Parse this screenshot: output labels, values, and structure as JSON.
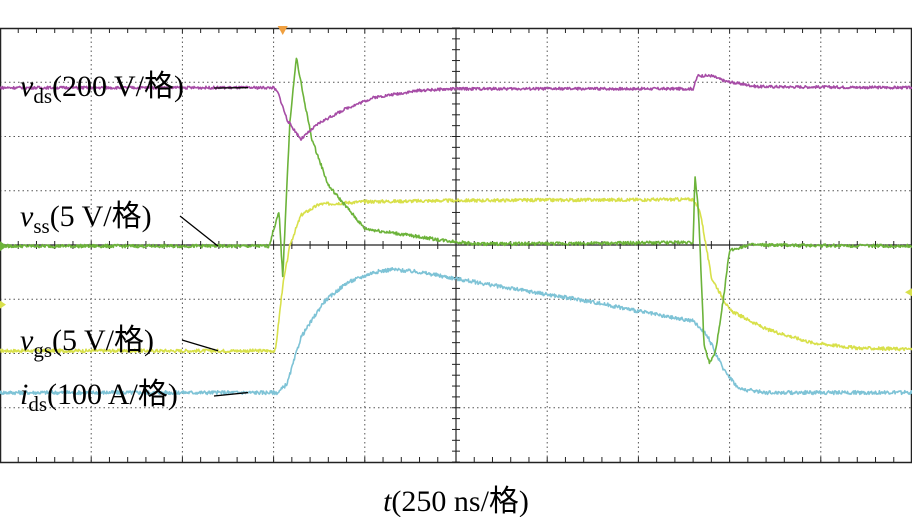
{
  "chart_data": {
    "type": "line",
    "title": "",
    "xlabel": {
      "var": "t",
      "rest": "(250 ns/格)"
    },
    "grid": {
      "x_divisions": 10,
      "y_divisions": 8,
      "visible": true
    },
    "x_unit": "div",
    "x_range": [
      0,
      10
    ],
    "y_unit": "div",
    "y_range": [
      0,
      8
    ],
    "colors": {
      "vds": "#a64ca6",
      "vss": "#6cb33a",
      "vgs": "#d8e04a",
      "ids": "#7ec3d6",
      "trigger": "#f0a040",
      "grid": "#555555"
    },
    "series": [
      {
        "key": "vds",
        "name": {
          "var": "v",
          "sub": "ds",
          "rest": "(200 V/格)"
        },
        "scale": "200 V/格",
        "points": [
          [
            0,
            6.9
          ],
          [
            3.0,
            6.9
          ],
          [
            3.05,
            6.8
          ],
          [
            3.15,
            6.3
          ],
          [
            3.3,
            5.95
          ],
          [
            3.5,
            6.25
          ],
          [
            3.8,
            6.52
          ],
          [
            4.1,
            6.72
          ],
          [
            4.6,
            6.85
          ],
          [
            5.0,
            6.88
          ],
          [
            7.6,
            6.88
          ],
          [
            7.65,
            7.12
          ],
          [
            7.8,
            7.12
          ],
          [
            7.95,
            7.02
          ],
          [
            8.3,
            6.92
          ],
          [
            10,
            6.9
          ]
        ]
      },
      {
        "key": "vss",
        "name": {
          "var": "v",
          "sub": "ss",
          "rest": "(5 V/格)"
        },
        "scale": "5 V/格",
        "points": [
          [
            0,
            3.98
          ],
          [
            2.95,
            3.98
          ],
          [
            3.02,
            4.4
          ],
          [
            3.06,
            4.6
          ],
          [
            3.1,
            3.4
          ],
          [
            3.14,
            4.9
          ],
          [
            3.18,
            6.3
          ],
          [
            3.25,
            7.45
          ],
          [
            3.32,
            6.8
          ],
          [
            3.42,
            5.95
          ],
          [
            3.6,
            5.1
          ],
          [
            3.8,
            4.7
          ],
          [
            4.0,
            4.3
          ],
          [
            4.4,
            4.2
          ],
          [
            4.8,
            4.1
          ],
          [
            5.2,
            4.02
          ],
          [
            6.6,
            4.03
          ],
          [
            7.6,
            4.05
          ],
          [
            7.62,
            5.3
          ],
          [
            7.66,
            4.6
          ],
          [
            7.72,
            2.15
          ],
          [
            7.78,
            1.82
          ],
          [
            7.84,
            2.0
          ],
          [
            7.9,
            2.6
          ],
          [
            8.0,
            3.9
          ],
          [
            8.2,
            4.0
          ],
          [
            10,
            3.98
          ]
        ]
      },
      {
        "key": "vgs",
        "name": {
          "var": "v",
          "sub": "gs",
          "rest": "(5 V/格)"
        },
        "scale": "5 V/格",
        "points": [
          [
            0,
            2.05
          ],
          [
            3.02,
            2.05
          ],
          [
            3.1,
            3.25
          ],
          [
            3.18,
            4.0
          ],
          [
            3.3,
            4.55
          ],
          [
            3.5,
            4.75
          ],
          [
            4.0,
            4.8
          ],
          [
            5.0,
            4.82
          ],
          [
            7.6,
            4.84
          ],
          [
            7.68,
            4.6
          ],
          [
            7.8,
            3.4
          ],
          [
            8.0,
            2.8
          ],
          [
            8.4,
            2.45
          ],
          [
            8.9,
            2.2
          ],
          [
            9.4,
            2.1
          ],
          [
            10,
            2.08
          ]
        ]
      },
      {
        "key": "ids",
        "name": {
          "var": "i",
          "sub": "ds",
          "rest": "(100 A/格)"
        },
        "scale": "100 A/格",
        "points": [
          [
            0,
            1.28
          ],
          [
            3.05,
            1.28
          ],
          [
            3.15,
            1.45
          ],
          [
            3.3,
            2.3
          ],
          [
            3.55,
            2.95
          ],
          [
            3.8,
            3.3
          ],
          [
            4.1,
            3.5
          ],
          [
            4.3,
            3.55
          ],
          [
            4.6,
            3.5
          ],
          [
            5.0,
            3.38
          ],
          [
            5.6,
            3.2
          ],
          [
            6.5,
            2.95
          ],
          [
            7.3,
            2.68
          ],
          [
            7.6,
            2.6
          ],
          [
            7.75,
            2.35
          ],
          [
            7.92,
            1.75
          ],
          [
            8.1,
            1.35
          ],
          [
            8.4,
            1.28
          ],
          [
            10,
            1.28
          ]
        ]
      }
    ],
    "trigger_marker": {
      "x_div": 3.1
    }
  }
}
